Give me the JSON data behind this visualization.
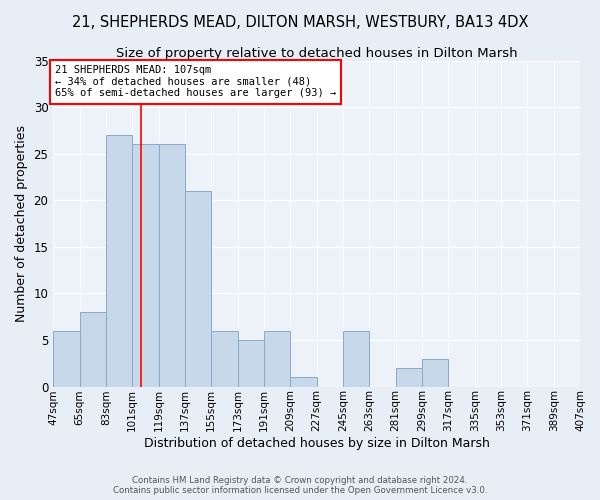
{
  "title1": "21, SHEPHERDS MEAD, DILTON MARSH, WESTBURY, BA13 4DX",
  "title2": "Size of property relative to detached houses in Dilton Marsh",
  "xlabel": "Distribution of detached houses by size in Dilton Marsh",
  "ylabel": "Number of detached properties",
  "bin_labels": [
    "47sqm",
    "65sqm",
    "83sqm",
    "101sqm",
    "119sqm",
    "137sqm",
    "155sqm",
    "173sqm",
    "191sqm",
    "209sqm",
    "227sqm",
    "245sqm",
    "263sqm",
    "281sqm",
    "299sqm",
    "317sqm",
    "335sqm",
    "353sqm",
    "371sqm",
    "389sqm",
    "407sqm"
  ],
  "bin_edges": [
    47,
    65,
    83,
    101,
    119,
    137,
    155,
    173,
    191,
    209,
    227,
    245,
    263,
    281,
    299,
    317,
    335,
    353,
    371,
    389,
    407
  ],
  "bar_values": [
    6,
    8,
    27,
    26,
    26,
    21,
    6,
    5,
    6,
    1,
    0,
    6,
    0,
    2,
    3,
    0,
    0,
    0,
    0,
    0
  ],
  "bar_color": "#c8d8eb",
  "bar_edge_color": "#8aaac8",
  "vline_x": 107,
  "vline_color": "red",
  "annotation_title": "21 SHEPHERDS MEAD: 107sqm",
  "annotation_line1": "← 34% of detached houses are smaller (48)",
  "annotation_line2": "65% of semi-detached houses are larger (93) →",
  "annotation_box_color": "white",
  "annotation_box_edge_color": "red",
  "ylim": [
    0,
    35
  ],
  "yticks": [
    0,
    5,
    10,
    15,
    20,
    25,
    30,
    35
  ],
  "footer1": "Contains HM Land Registry data © Crown copyright and database right 2024.",
  "footer2": "Contains public sector information licensed under the Open Government Licence v3.0.",
  "bg_color": "#e8eef5",
  "plot_bg_color": "#edf2f8",
  "grid_color": "#ffffff",
  "title1_fontsize": 10.5,
  "title2_fontsize": 9.5
}
